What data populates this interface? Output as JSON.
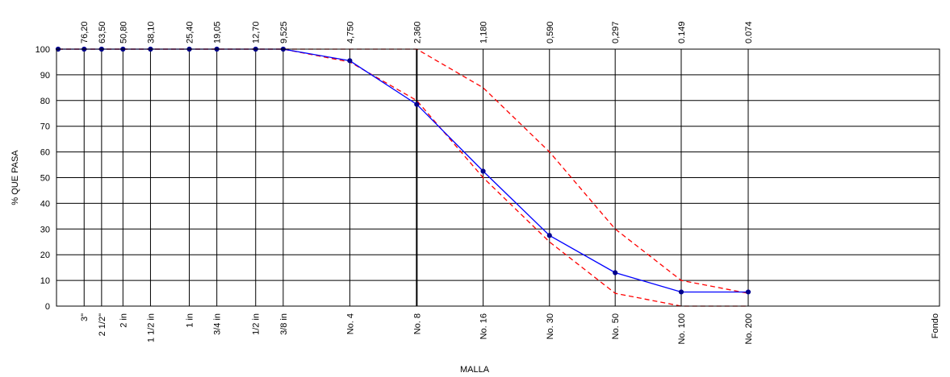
{
  "chart_data": {
    "type": "line",
    "title": "",
    "xlabel": "MALLA",
    "ylabel": "% QUE PASA",
    "ylim": [
      0,
      100
    ],
    "yticks": [
      0,
      10,
      20,
      30,
      40,
      50,
      60,
      70,
      80,
      90,
      100
    ],
    "grid": true,
    "legend": "none",
    "x_scale": "log",
    "x_reversed": true,
    "sieves": [
      {
        "label": "",
        "opening": "",
        "size": 100
      },
      {
        "label": "3\"",
        "opening": "76,20",
        "size": 76.2
      },
      {
        "label": "2 1/2\"",
        "opening": "63,50",
        "size": 63.5
      },
      {
        "label": "2 in",
        "opening": "50,80",
        "size": 50.8
      },
      {
        "label": "1 1/2 in",
        "opening": "38,10",
        "size": 38.1
      },
      {
        "label": "1 in",
        "opening": "25,40",
        "size": 25.4
      },
      {
        "label": "3/4 in",
        "opening": "19,05",
        "size": 19.05
      },
      {
        "label": "1/2 in",
        "opening": "12,70",
        "size": 12.7
      },
      {
        "label": "3/8 in",
        "opening": "9,525",
        "size": 9.525
      },
      {
        "label": "No. 4",
        "opening": "4,750",
        "size": 4.75
      },
      {
        "label": "No. 8",
        "opening": "2,360",
        "size": 2.36
      },
      {
        "label": "No. 16",
        "opening": "1,180",
        "size": 1.18
      },
      {
        "label": "No. 30",
        "opening": "0,590",
        "size": 0.59
      },
      {
        "label": "No. 50",
        "opening": "0,297",
        "size": 0.297
      },
      {
        "label": "No. 100",
        "opening": "0.149",
        "size": 0.149
      },
      {
        "label": "No. 200",
        "opening": "0.074",
        "size": 0.074
      }
    ],
    "fondo_label": "Fondo",
    "series": [
      {
        "style": "solid",
        "color": "#0000ff",
        "markers": true,
        "x": [
          100,
          76.2,
          63.5,
          50.8,
          38.1,
          25.4,
          19.05,
          12.7,
          9.525,
          4.75,
          2.36,
          1.18,
          0.59,
          0.297,
          0.149,
          0.074
        ],
        "y": [
          100,
          100,
          100,
          100,
          100,
          100,
          100,
          100,
          100,
          95.5,
          78.5,
          52.5,
          27.5,
          13,
          5.5,
          5.5
        ]
      },
      {
        "style": "dashed",
        "color": "#ff0000",
        "markers": false,
        "x": [
          100,
          76.2,
          63.5,
          50.8,
          38.1,
          25.4,
          19.05,
          12.7,
          9.525,
          4.75,
          2.36,
          1.18,
          0.59,
          0.297,
          0.149,
          0.074
        ],
        "y": [
          100,
          100,
          100,
          100,
          100,
          100,
          100,
          100,
          100,
          95,
          80,
          50,
          25,
          5,
          0,
          0
        ]
      },
      {
        "style": "dashed",
        "color": "#ff0000",
        "markers": false,
        "x": [
          100,
          76.2,
          63.5,
          50.8,
          38.1,
          25.4,
          19.05,
          12.7,
          9.525,
          4.75,
          2.36,
          1.18,
          0.59,
          0.297,
          0.149,
          0.074
        ],
        "y": [
          100,
          100,
          100,
          100,
          100,
          100,
          100,
          100,
          100,
          100,
          100,
          85,
          60,
          30,
          10,
          5
        ]
      }
    ]
  }
}
